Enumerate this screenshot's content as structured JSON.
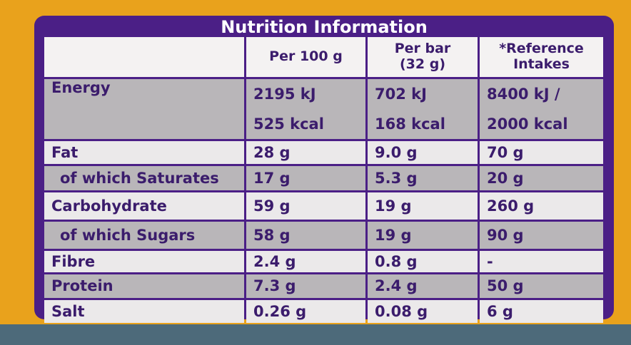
{
  "table": {
    "title": "Nutrition Information",
    "header": [
      [
        "Per 100 g"
      ],
      [
        "Per bar",
        "(32 g)"
      ],
      [
        "*Reference",
        "Intakes"
      ]
    ],
    "rows": [
      {
        "label": "Energy",
        "values": [
          [
            "2195 kJ",
            "525 kcal"
          ],
          [
            "702 kJ",
            "168 kcal"
          ],
          [
            "8400 kJ /",
            "2000 kcal"
          ]
        ]
      },
      {
        "label": "Fat",
        "values": [
          [
            "28 g"
          ],
          [
            "9.0 g"
          ],
          [
            "70 g"
          ]
        ]
      },
      {
        "label": "of which Saturates",
        "values": [
          [
            "17 g"
          ],
          [
            "5.3 g"
          ],
          [
            "20 g"
          ]
        ]
      },
      {
        "label": "Carbohydrate",
        "values": [
          [
            "59 g"
          ],
          [
            "19 g"
          ],
          [
            "260 g"
          ]
        ]
      },
      {
        "label": "of which Sugars",
        "values": [
          [
            "58 g"
          ],
          [
            "19 g"
          ],
          [
            "90 g"
          ]
        ]
      },
      {
        "label": "Fibre",
        "values": [
          [
            "2.4 g"
          ],
          [
            "0.8 g"
          ],
          [
            "-"
          ]
        ]
      },
      {
        "label": "Protein",
        "values": [
          [
            "7.3 g"
          ],
          [
            "2.4 g"
          ],
          [
            "50 g"
          ]
        ]
      },
      {
        "label": "Salt",
        "values": [
          [
            "0.26 g"
          ],
          [
            "0.08 g"
          ],
          [
            "6 g"
          ]
        ]
      }
    ]
  }
}
